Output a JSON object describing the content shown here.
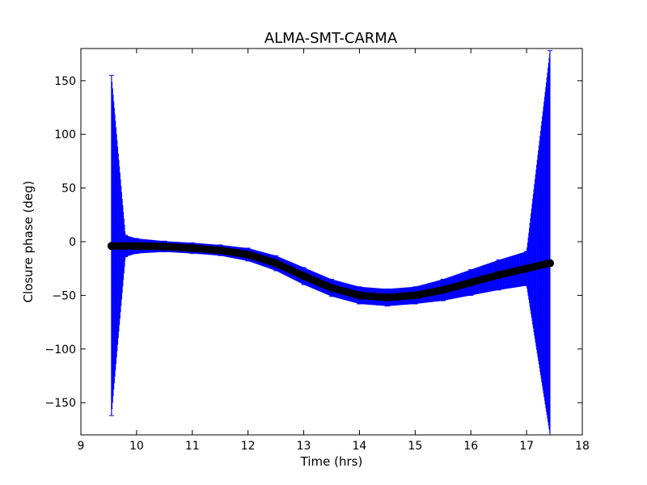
{
  "chart_data": {
    "type": "scatter",
    "title": "ALMA-SMT-CARMA",
    "xlabel": "Time (hrs)",
    "ylabel": "Closure phase (deg)",
    "xlim": [
      9,
      18
    ],
    "ylim": [
      -180,
      180
    ],
    "xticks": [
      9,
      10,
      11,
      12,
      13,
      14,
      15,
      16,
      17,
      18
    ],
    "xtick_labels": [
      "9",
      "10",
      "11",
      "12",
      "13",
      "14",
      "15",
      "16",
      "17",
      "18"
    ],
    "yticks": [
      150,
      100,
      50,
      0,
      -50,
      -100,
      -150
    ],
    "ytick_labels": [
      "150",
      "100",
      "50",
      "0",
      "−50",
      "−100",
      "−150"
    ],
    "grid": false,
    "legend": "none",
    "series": [
      {
        "marker_color": "#000000",
        "errorbar_color": "#0000ff",
        "x": [
          9.55,
          9.8,
          10.0,
          10.5,
          11.0,
          11.5,
          12.0,
          12.5,
          13.0,
          13.5,
          14.0,
          14.5,
          15.0,
          15.5,
          16.0,
          16.5,
          17.0,
          17.42
        ],
        "y": [
          -4,
          -4,
          -4,
          -4.5,
          -6,
          -8,
          -12,
          -20,
          -32,
          -43,
          -50,
          -52,
          -50,
          -45,
          -38,
          -31,
          -25,
          -20
        ],
        "yerr_lower": [
          158,
          10,
          7,
          5,
          5,
          5,
          6,
          7,
          8,
          8,
          8,
          8,
          8,
          10,
          12,
          14,
          16,
          160
        ],
        "yerr_upper": [
          159,
          10,
          7,
          5,
          5,
          5,
          6,
          7,
          8,
          8,
          8,
          8,
          8,
          10,
          12,
          14,
          16,
          198
        ]
      }
    ]
  }
}
